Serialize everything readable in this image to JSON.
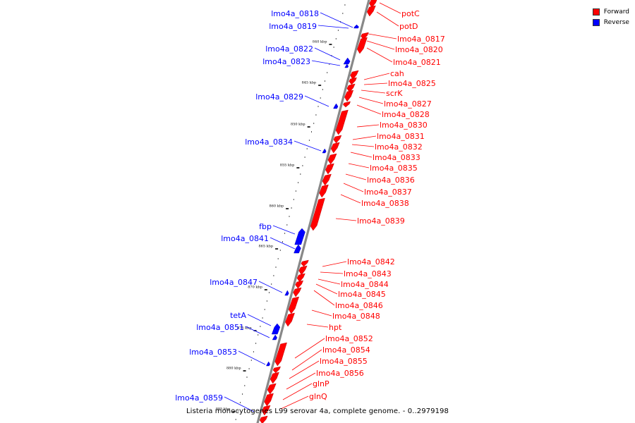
{
  "legend": {
    "forward_label": "Forward",
    "reverse_label": "Reverse",
    "forward_color": "#ff0000",
    "reverse_color": "#0000ff"
  },
  "caption": "Listeria monocytogenes L99 serovar 4a, complete genome. - 0..2979198",
  "scale_labels": [
    "840 kbp",
    "845 kbp",
    "850 kbp",
    "855 kbp",
    "860 kbp",
    "865 kbp",
    "870 kbp",
    "875 kbp",
    "880 kbp",
    "885 kbp"
  ],
  "forward_genes": [
    "potC",
    "potD",
    "lmo4a_0817",
    "lmo4a_0820",
    "lmo4a_0821",
    "cah",
    "lmo4a_0825",
    "scrK",
    "lmo4a_0827",
    "lmo4a_0828",
    "lmo4a_0830",
    "lmo4a_0831",
    "lmo4a_0832",
    "lmo4a_0833",
    "lmo4a_0835",
    "lmo4a_0836",
    "lmo4a_0837",
    "lmo4a_0838",
    "lmo4a_0839",
    "lmo4a_0842",
    "lmo4a_0843",
    "lmo4a_0844",
    "lmo4a_0845",
    "lmo4a_0846",
    "lmo4a_0848",
    "hpt",
    "lmo4a_0852",
    "lmo4a_0854",
    "lmo4a_0855",
    "lmo4a_0856",
    "glnP",
    "glnQ"
  ],
  "reverse_genes": [
    "lmo4a_0818",
    "lmo4a_0819",
    "lmo4a_0822",
    "lmo4a_0823",
    "lmo4a_0829",
    "lmo4a_0834",
    "fbp",
    "lmo4a_0841",
    "lmo4a_0847",
    "tetA",
    "lmo4a_0851",
    "lmo4a_0853",
    "lmo4a_0859"
  ]
}
